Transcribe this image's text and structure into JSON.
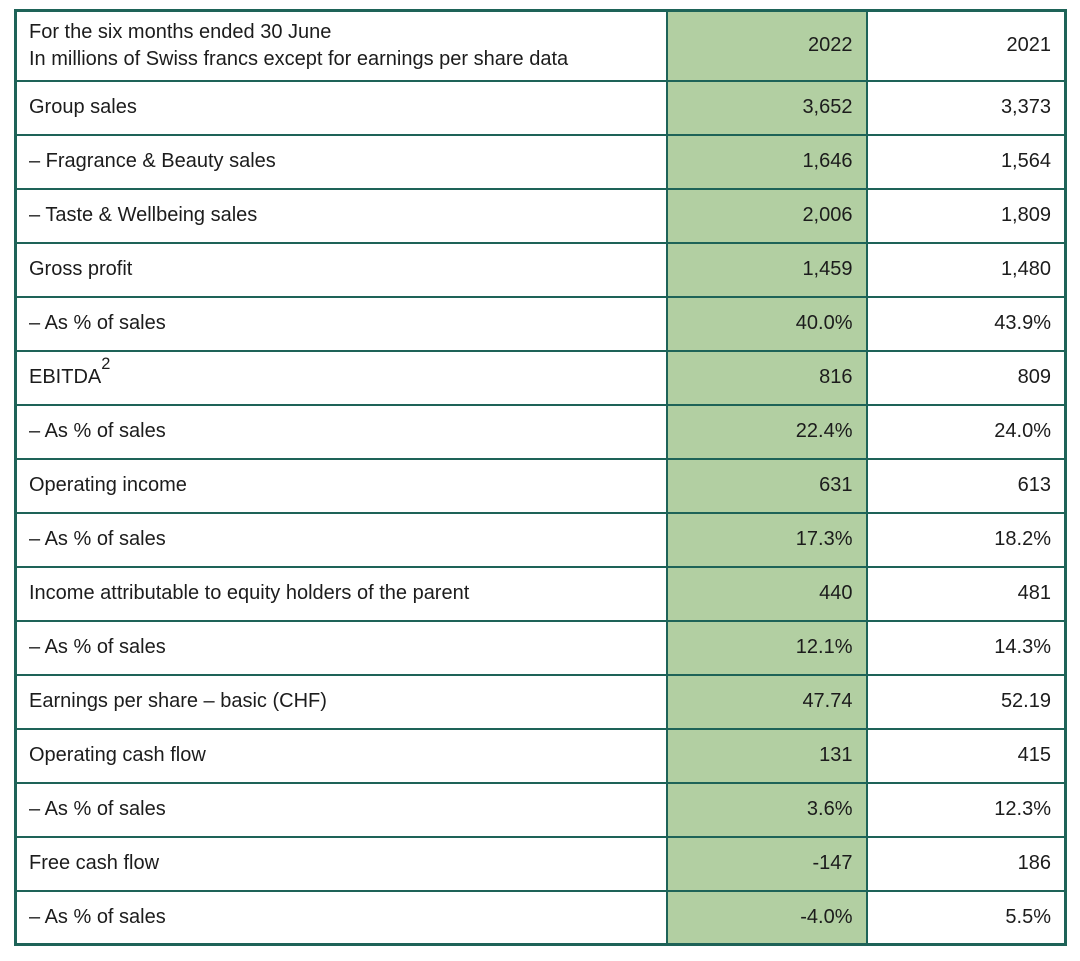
{
  "colors": {
    "border_teal": "#1e6358",
    "highlight_green": "#b2cfa2",
    "text": "#1c1c1c"
  },
  "table": {
    "header": {
      "label_line1": "For the six months ended 30 June",
      "label_line2": "In millions of Swiss francs except for earnings per share data",
      "col_2022": "2022",
      "col_2021": "2021"
    },
    "rows": [
      {
        "label": "Group sales",
        "v2022": "3,652",
        "v2021": "3,373"
      },
      {
        "label": "– Fragrance & Beauty sales",
        "v2022": "1,646",
        "v2021": "1,564"
      },
      {
        "label": "– Taste & Wellbeing sales",
        "v2022": "2,006",
        "v2021": "1,809"
      },
      {
        "label": "Gross profit",
        "v2022": "1,459",
        "v2021": "1,480"
      },
      {
        "label": "– As % of sales",
        "v2022": "40.0%",
        "v2021": "43.9%"
      },
      {
        "label": "EBITDA",
        "sup": "2",
        "v2022": "816",
        "v2021": "809"
      },
      {
        "label": "– As % of sales",
        "v2022": "22.4%",
        "v2021": "24.0%"
      },
      {
        "label": "Operating income",
        "v2022": "631",
        "v2021": "613"
      },
      {
        "label": "– As % of sales",
        "v2022": "17.3%",
        "v2021": "18.2%"
      },
      {
        "label": "Income attributable to equity holders of the parent",
        "v2022": "440",
        "v2021": "481"
      },
      {
        "label": "– As % of sales",
        "v2022": "12.1%",
        "v2021": "14.3%"
      },
      {
        "label": "Earnings per share – basic (CHF)",
        "v2022": "47.74",
        "v2021": "52.19"
      },
      {
        "label": "Operating cash flow",
        "v2022": "131",
        "v2021": "415"
      },
      {
        "label": "– As % of sales",
        "v2022": "3.6%",
        "v2021": "12.3%"
      },
      {
        "label": "Free cash flow",
        "v2022": "-147",
        "v2021": "186"
      },
      {
        "label": "– As % of sales",
        "v2022": "-4.0%",
        "v2021": "5.5%"
      }
    ]
  }
}
